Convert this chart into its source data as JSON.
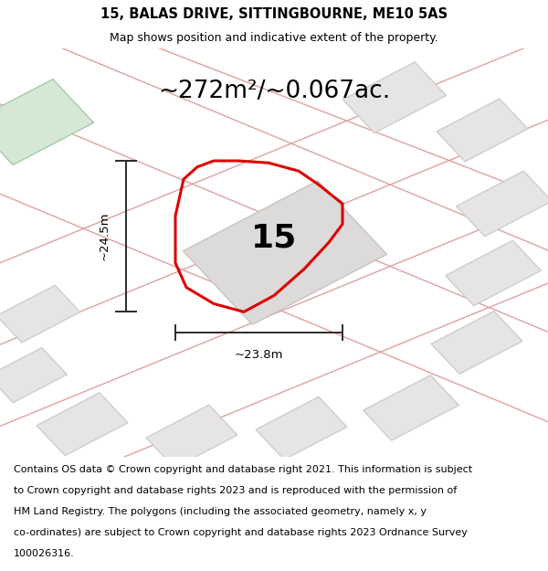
{
  "title_line1": "15, BALAS DRIVE, SITTINGBOURNE, ME10 5AS",
  "title_line2": "Map shows position and indicative extent of the property.",
  "area_text": "~272m²/~0.067ac.",
  "property_number": "15",
  "width_label": "~23.8m",
  "height_label": "~24.5m",
  "footer_lines": [
    "Contains OS data © Crown copyright and database right 2021. This information is subject",
    "to Crown copyright and database rights 2023 and is reproduced with the permission of",
    "HM Land Registry. The polygons (including the associated geometry, namely x, y",
    "co-ordinates) are subject to Crown copyright and database rights 2023 Ordnance Survey",
    "100026316."
  ],
  "map_bg": "#f2f0f0",
  "road_color": "#e0a0a0",
  "building_fill": "#e6e4e4",
  "building_edge": "#d0cccc",
  "tl_building_fill": "#d5e8d5",
  "tl_building_edge": "#a8c8a8",
  "plot_outline_color": "#dd0000",
  "dimension_color": "#2a2a2a",
  "title_fontsize": 10.5,
  "subtitle_fontsize": 9.0,
  "area_fontsize": 19,
  "number_fontsize": 26,
  "dim_fontsize": 9.5,
  "footer_fontsize": 8.0,
  "road_lw": 1.0,
  "plot_lw": 2.2,
  "dim_lw": 1.4
}
